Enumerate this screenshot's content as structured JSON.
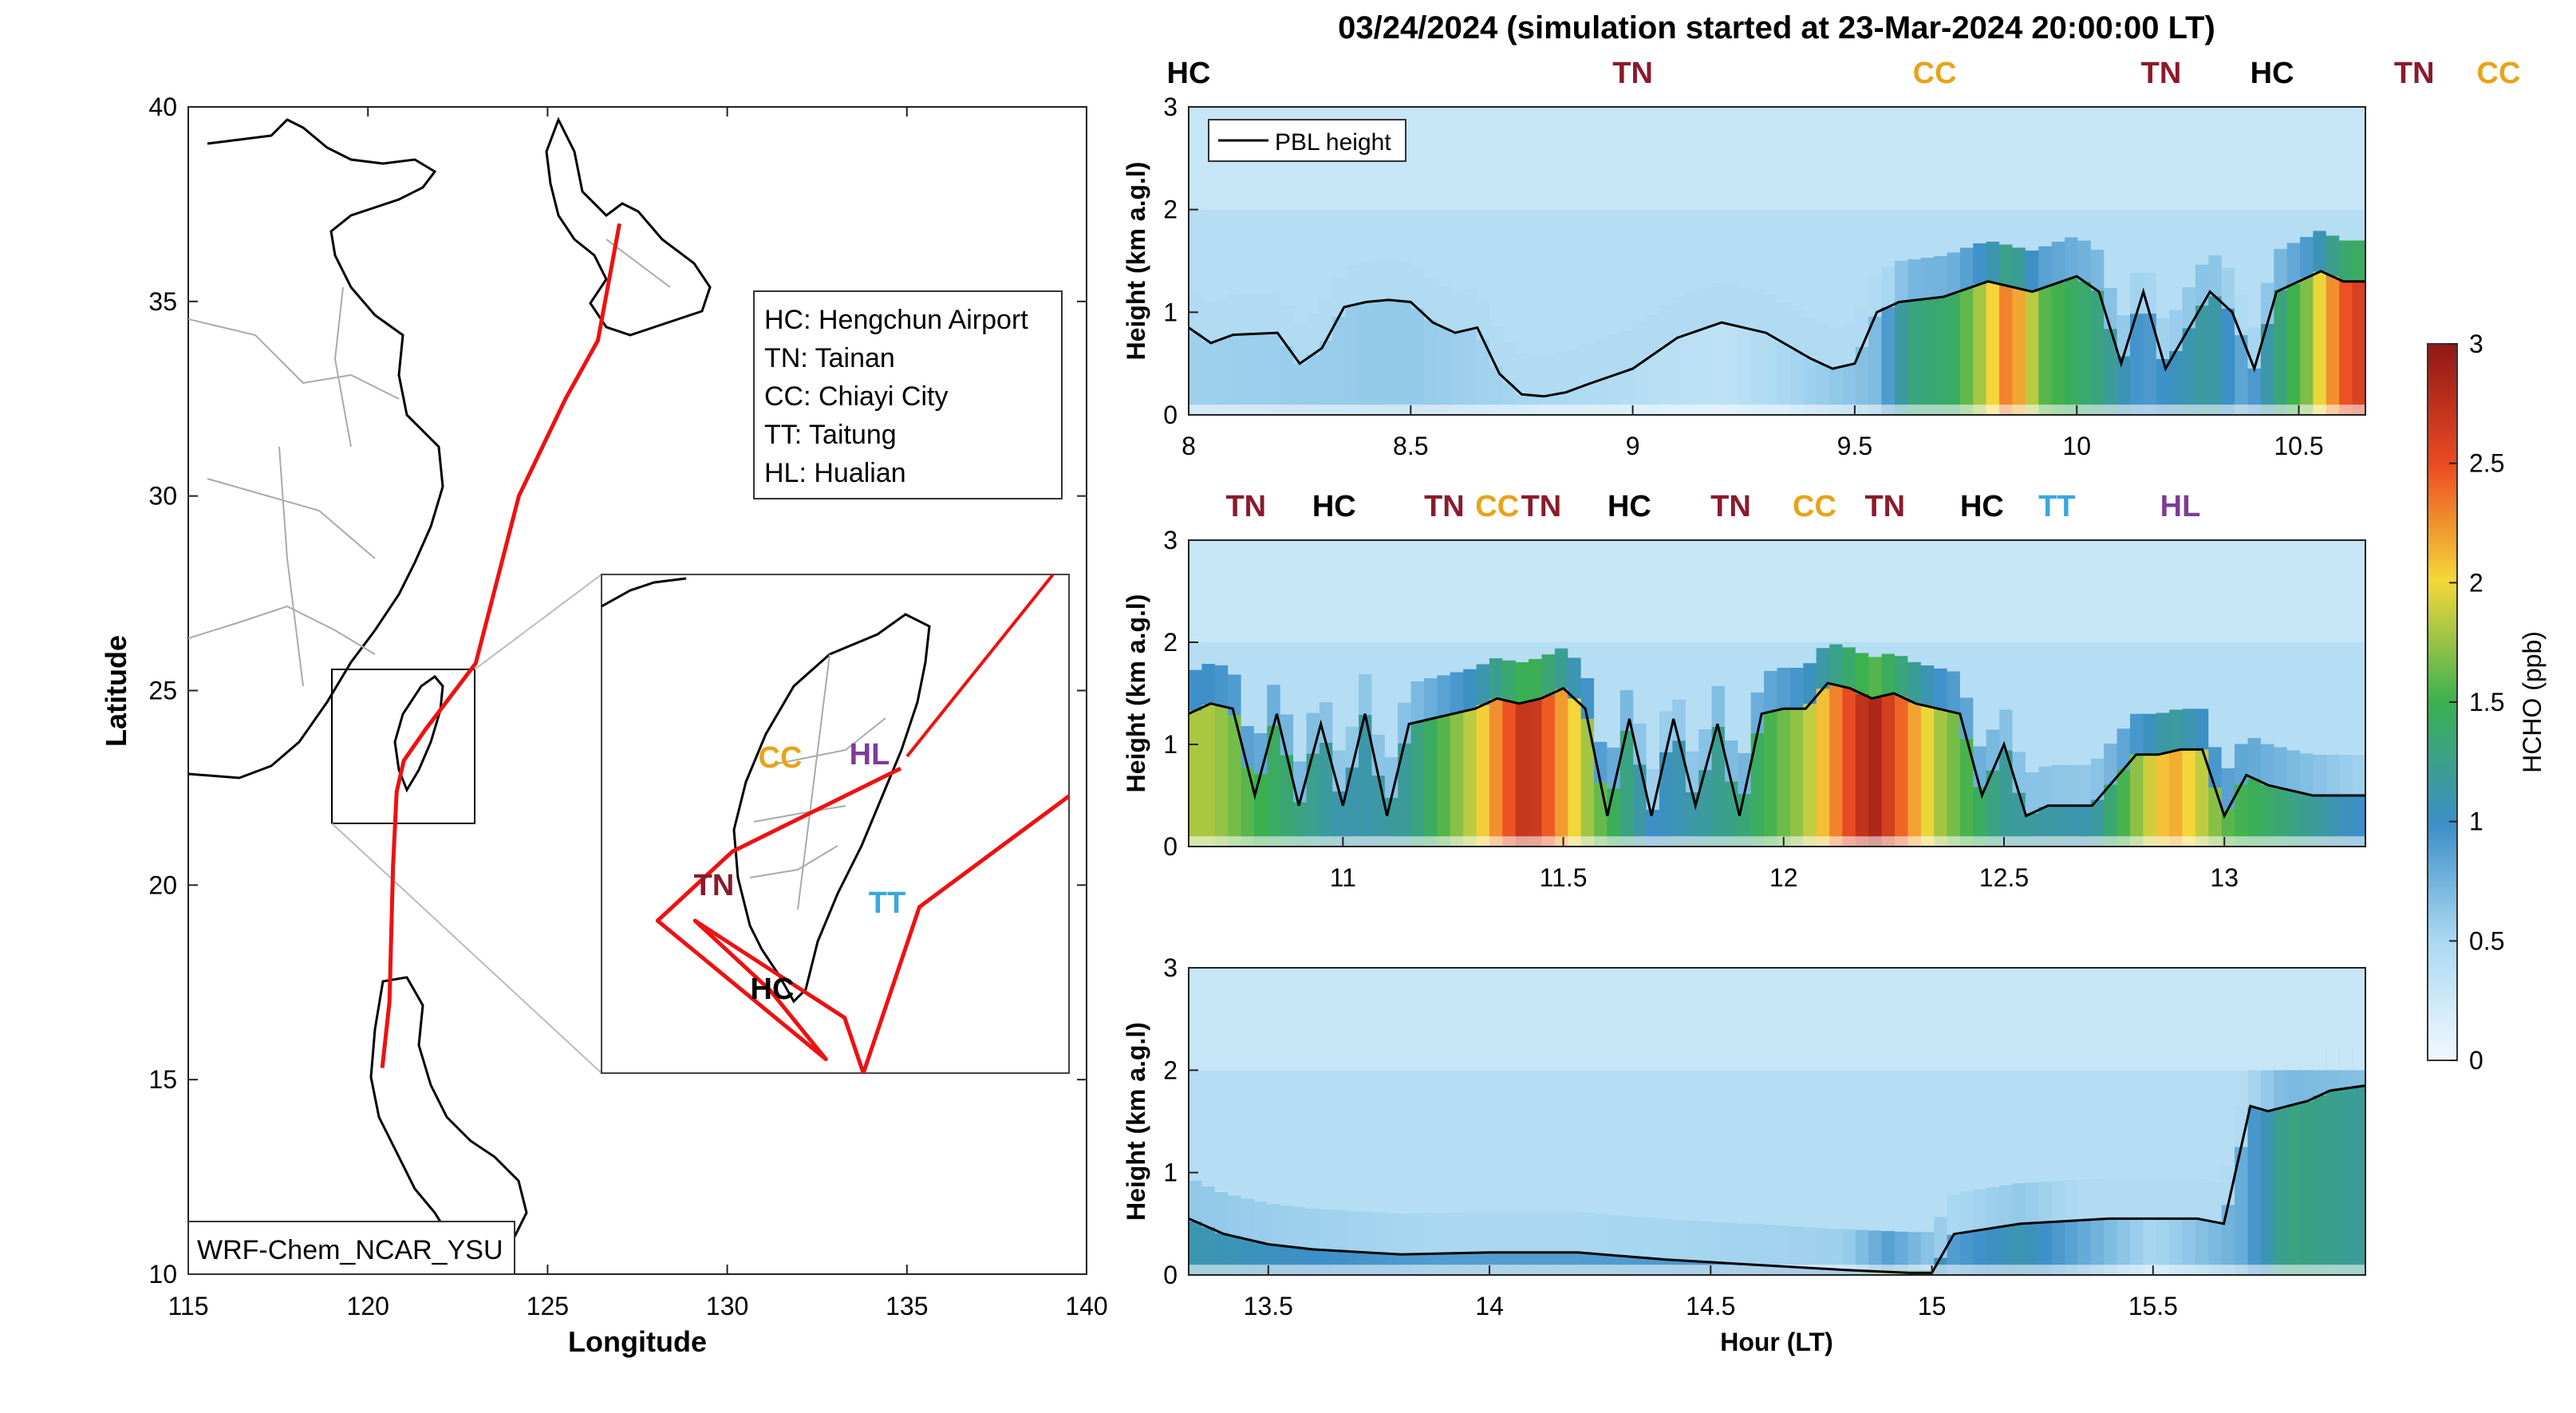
{
  "figure_title": "03/24/2024 (simulation started at 23-Mar-2024 20:00:00 LT)",
  "colors": {
    "TN": "#8b1a2c",
    "HC": "#000000",
    "CC": "#e8a317",
    "TT": "#3aa7df",
    "HL": "#7d3c98",
    "track": "#ee1111",
    "pbl_line": "#000000"
  },
  "chart_data": [
    {
      "type": "map",
      "panel": "track-map",
      "xlabel": "Longitude",
      "ylabel": "Latitude",
      "xlim": [
        115,
        140
      ],
      "ylim": [
        10,
        40
      ],
      "xticks": [
        115,
        120,
        125,
        130,
        135,
        140
      ],
      "yticks": [
        10,
        15,
        20,
        25,
        30,
        35,
        40
      ],
      "model_label": "WRF-Chem_NCAR_YSU",
      "legend": [
        "HC: Hengchun Airport",
        "TN: Tainan",
        "CC: Chiayi City",
        "TT: Taitung",
        "HL: Hualian"
      ],
      "track": {
        "name": "flight track",
        "lon": [
          127.0,
          126.4,
          125.5,
          124.2,
          123.0,
          121.6,
          121.0,
          120.8,
          120.7,
          120.6,
          120.4
        ],
        "lat": [
          37.0,
          34.0,
          32.5,
          30.0,
          25.7,
          24.0,
          23.2,
          22.4,
          20.5,
          17.0,
          15.3
        ]
      },
      "inset_labels": [
        "CC",
        "HL",
        "TN",
        "TT",
        "HC"
      ],
      "inset_lon": [
        119.9,
        122.4
      ],
      "inset_lat": [
        21.8,
        25.4
      ]
    },
    {
      "type": "heatmap",
      "panel": "curtain-1",
      "xlabel": "",
      "ylabel": "Height (km a.g.l)",
      "xlim": [
        8,
        10.65
      ],
      "ylim": [
        0,
        3
      ],
      "xticks": [
        8,
        8.5,
        9,
        9.5,
        10,
        10.5
      ],
      "yticks": [
        0,
        1,
        2,
        3
      ],
      "site_labels": [
        "HC",
        "TN",
        "CC",
        "TN",
        "HC",
        "TN",
        "CC"
      ],
      "site_label_hours": [
        8.0,
        9.0,
        9.68,
        10.19,
        10.44,
        10.76,
        10.95
      ],
      "legend": "PBL height",
      "pbl_height_km": {
        "hour": [
          8.0,
          8.05,
          8.1,
          8.2,
          8.25,
          8.3,
          8.35,
          8.4,
          8.45,
          8.5,
          8.55,
          8.6,
          8.65,
          8.7,
          8.75,
          8.8,
          8.85,
          8.9,
          9.0,
          9.1,
          9.2,
          9.3,
          9.4,
          9.45,
          9.5,
          9.55,
          9.6,
          9.7,
          9.8,
          9.9,
          10.0,
          10.05,
          10.1,
          10.15,
          10.2,
          10.3,
          10.35,
          10.4,
          10.45,
          10.5,
          10.55,
          10.6,
          10.65
        ],
        "value": [
          0.85,
          0.7,
          0.78,
          0.8,
          0.5,
          0.65,
          1.05,
          1.1,
          1.12,
          1.1,
          0.9,
          0.8,
          0.85,
          0.4,
          0.2,
          0.18,
          0.22,
          0.3,
          0.45,
          0.75,
          0.9,
          0.8,
          0.55,
          0.45,
          0.5,
          1.0,
          1.1,
          1.15,
          1.3,
          1.2,
          1.35,
          1.2,
          0.5,
          1.2,
          0.45,
          1.2,
          1.0,
          0.45,
          1.2,
          1.3,
          1.4,
          1.3,
          1.3
        ]
      },
      "hcho_columns": {
        "hour": [
          8.0,
          8.5,
          9.2,
          9.55,
          9.62,
          9.72,
          9.8,
          9.85,
          9.92,
          10.05,
          10.15,
          10.3,
          10.38,
          10.47,
          10.52,
          10.57,
          10.62
        ],
        "value": [
          0.55,
          0.6,
          0.35,
          0.7,
          1.3,
          1.4,
          1.9,
          2.4,
          1.6,
          1.3,
          0.9,
          1.2,
          0.8,
          1.4,
          1.7,
          2.2,
          2.6
        ]
      }
    },
    {
      "type": "heatmap",
      "panel": "curtain-2",
      "xlabel": "",
      "ylabel": "Height (km a.g.l)",
      "xlim": [
        10.65,
        13.32
      ],
      "ylim": [
        0,
        3
      ],
      "xticks": [
        11,
        11.5,
        12,
        12.5,
        13
      ],
      "yticks": [
        0,
        1,
        2,
        3
      ],
      "site_labels": [
        "TN",
        "HC",
        "TN",
        "CC",
        "TN",
        "HC",
        "TN",
        "CC",
        "TN",
        "HC",
        "TT",
        "HL"
      ],
      "site_label_hours": [
        10.78,
        10.98,
        11.23,
        11.35,
        11.45,
        11.65,
        11.88,
        12.07,
        12.23,
        12.45,
        12.62,
        12.9
      ],
      "pbl_height_km": {
        "hour": [
          10.65,
          10.7,
          10.75,
          10.8,
          10.85,
          10.9,
          10.95,
          11.0,
          11.05,
          11.1,
          11.15,
          11.2,
          11.3,
          11.35,
          11.4,
          11.45,
          11.5,
          11.55,
          11.6,
          11.65,
          11.7,
          11.75,
          11.8,
          11.85,
          11.9,
          11.95,
          12.0,
          12.05,
          12.1,
          12.15,
          12.2,
          12.25,
          12.3,
          12.35,
          12.4,
          12.45,
          12.5,
          12.55,
          12.6,
          12.7,
          12.8,
          12.85,
          12.9,
          12.95,
          13.0,
          13.05,
          13.1,
          13.2,
          13.32
        ],
        "value": [
          1.3,
          1.4,
          1.35,
          0.5,
          1.3,
          0.4,
          1.2,
          0.4,
          1.3,
          0.3,
          1.2,
          1.25,
          1.35,
          1.45,
          1.4,
          1.45,
          1.55,
          1.35,
          0.3,
          1.25,
          0.3,
          1.25,
          0.4,
          1.2,
          0.3,
          1.3,
          1.35,
          1.35,
          1.6,
          1.55,
          1.45,
          1.5,
          1.4,
          1.35,
          1.3,
          0.5,
          1.0,
          0.3,
          0.4,
          0.4,
          0.9,
          0.9,
          0.95,
          0.95,
          0.3,
          0.7,
          0.6,
          0.5,
          0.5
        ]
      },
      "hcho_columns": {
        "hour": [
          10.7,
          10.85,
          11.0,
          11.15,
          11.3,
          11.42,
          11.55,
          11.7,
          11.9,
          12.05,
          12.2,
          12.35,
          12.5,
          12.7,
          12.88,
          13.0,
          13.15,
          13.3
        ],
        "value": [
          1.8,
          1.4,
          1.1,
          1.2,
          1.9,
          2.8,
          1.8,
          1.0,
          1.3,
          1.8,
          2.9,
          1.8,
          1.2,
          1.1,
          2.2,
          1.6,
          1.3,
          1.0
        ]
      }
    },
    {
      "type": "heatmap",
      "panel": "curtain-3",
      "xlabel": "Hour (LT)",
      "ylabel": "Height (km a.g.l)",
      "xlim": [
        13.32,
        15.98
      ],
      "ylim": [
        0,
        3
      ],
      "xticks": [
        13.5,
        14,
        14.5,
        15,
        15.5
      ],
      "yticks": [
        0,
        1,
        2,
        3
      ],
      "pbl_height_km": {
        "hour": [
          13.32,
          13.4,
          13.5,
          13.6,
          13.8,
          14.0,
          14.2,
          14.4,
          14.6,
          14.8,
          14.95,
          15.0,
          15.05,
          15.2,
          15.4,
          15.6,
          15.66,
          15.72,
          15.76,
          15.85,
          15.9,
          15.98
        ],
        "value": [
          0.55,
          0.4,
          0.3,
          0.25,
          0.2,
          0.22,
          0.22,
          0.15,
          0.1,
          0.05,
          0.02,
          0.02,
          0.4,
          0.5,
          0.55,
          0.55,
          0.5,
          1.65,
          1.6,
          1.7,
          1.8,
          1.85
        ]
      },
      "hcho_columns": {
        "hour": [
          13.35,
          13.6,
          13.9,
          14.2,
          14.5,
          14.8,
          14.9,
          15.05,
          15.2,
          15.5,
          15.7,
          15.8,
          15.98
        ],
        "value": [
          1.1,
          1.0,
          0.9,
          0.9,
          0.95,
          1.0,
          1.6,
          0.9,
          1.1,
          0.5,
          0.8,
          1.3,
          1.2
        ]
      }
    },
    {
      "type": "colorbar",
      "panel": "colorbar",
      "label": "HCHO (ppb)",
      "ylim": [
        0,
        3
      ],
      "ticks": [
        0,
        0.5,
        1,
        1.5,
        2,
        2.5,
        3
      ],
      "tick_labels": [
        "0",
        "0.5",
        "1",
        "1.5",
        "2",
        "2.5",
        "3"
      ]
    }
  ]
}
